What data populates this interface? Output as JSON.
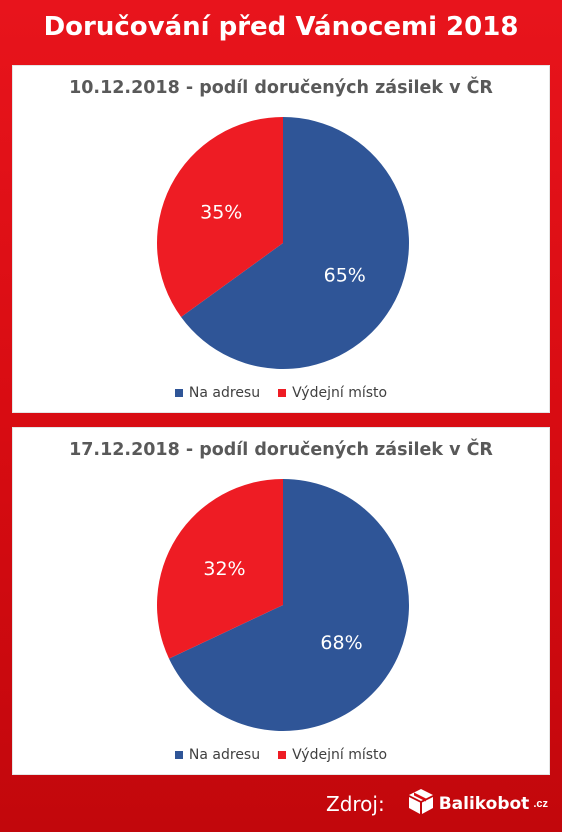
{
  "page_title": "Doručování před Vánocemi 2018",
  "colors": {
    "na_adresu": "#2f5597",
    "vydejni_misto": "#ee1c24"
  },
  "chart_data": [
    {
      "type": "pie",
      "title": "10.12.2018 - podíl doručených zásilek v ČR",
      "categories": [
        "Na adresu",
        "Výdejní místo"
      ],
      "values": [
        65,
        35
      ],
      "labels": [
        "65%",
        "35%"
      ],
      "legend_position": "bottom"
    },
    {
      "type": "pie",
      "title": "17.12.2018 - podíl doručených zásilek v ČR",
      "categories": [
        "Na adresu",
        "Výdejní místo"
      ],
      "values": [
        68,
        32
      ],
      "labels": [
        "68%",
        "32%"
      ],
      "legend_position": "bottom"
    }
  ],
  "footer": {
    "source_label": "Zdroj:",
    "logo_text": "Balikobot",
    "logo_suffix": ".cz"
  }
}
